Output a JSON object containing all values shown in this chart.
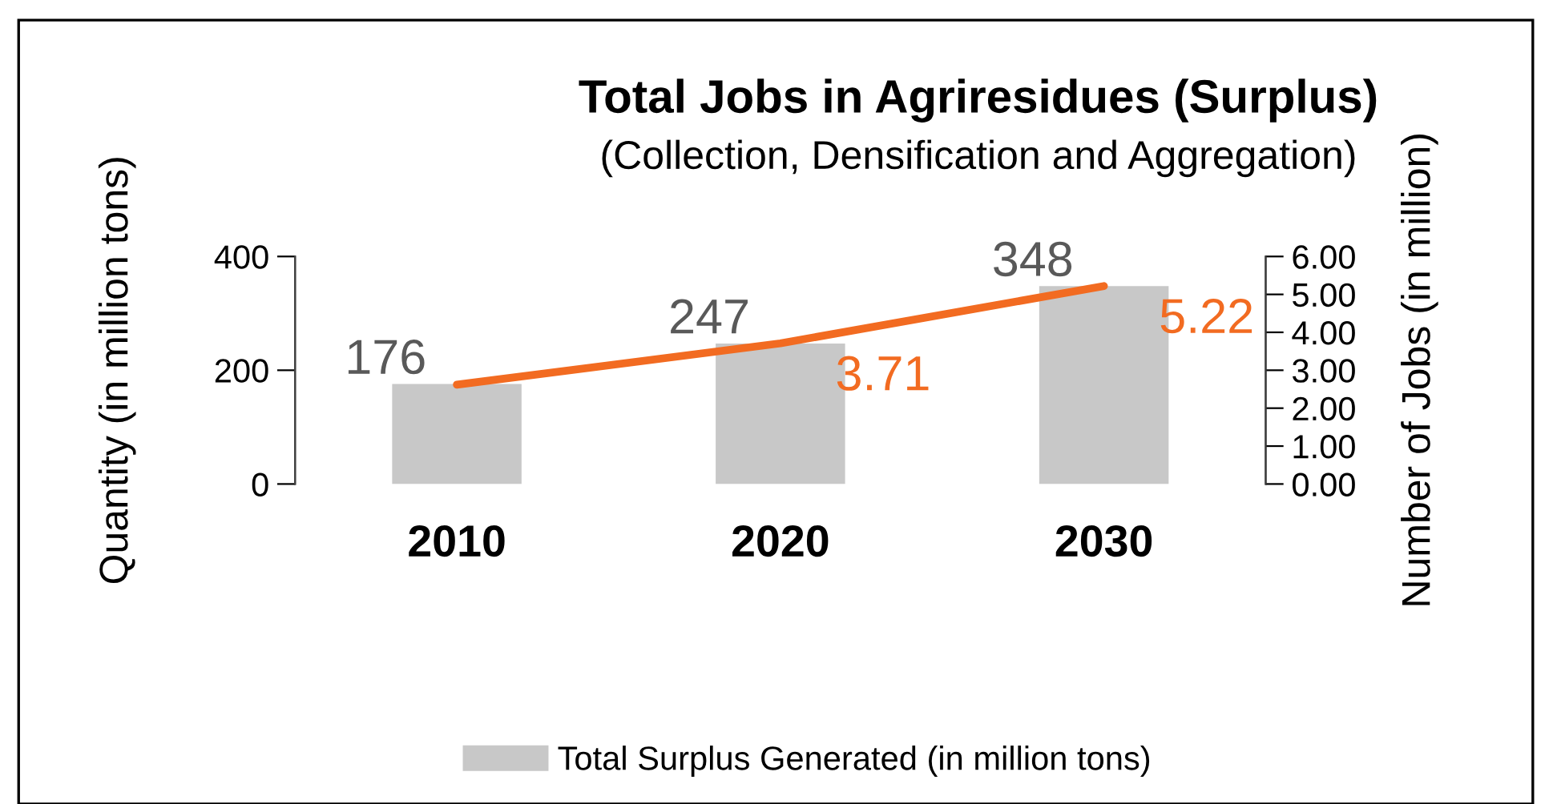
{
  "chart_data": {
    "type": "bar",
    "title": "Total Jobs in Agriresidues (Surplus)",
    "subtitle": "(Collection, Densification and Aggregation)",
    "ylabel": "Quantity (in million tons)",
    "y2label": "Number of Jobs (in million)",
    "categories": [
      "2010",
      "2020",
      "2030"
    ],
    "series": [
      {
        "name": "Total Surplus Generated (in million tons)",
        "color": "#c8c8c8",
        "values": [
          176,
          247,
          348
        ],
        "value_labels": [
          "176",
          "247",
          "348"
        ]
      },
      {
        "type": "line",
        "axis": "y2",
        "color": "#f26b21",
        "values": [
          2.62,
          3.71,
          5.22
        ],
        "value_labels": [
          null,
          "3.71",
          "5.22"
        ]
      }
    ],
    "ylim": [
      0,
      400
    ],
    "yticks": [
      0,
      200,
      400
    ],
    "y2lim": [
      0,
      6
    ],
    "y2ticks": [
      {
        "value": 0,
        "label": "0.00"
      },
      {
        "value": 1,
        "label": "1.00"
      },
      {
        "value": 2,
        "label": "2.00"
      },
      {
        "value": 3,
        "label": "3.00"
      },
      {
        "value": 4,
        "label": "4.00"
      },
      {
        "value": 5,
        "label": "5.00"
      },
      {
        "value": 6,
        "label": "6.00"
      }
    ],
    "legend": "bottom",
    "grid": false,
    "marker": "none",
    "line_style": "solid"
  }
}
